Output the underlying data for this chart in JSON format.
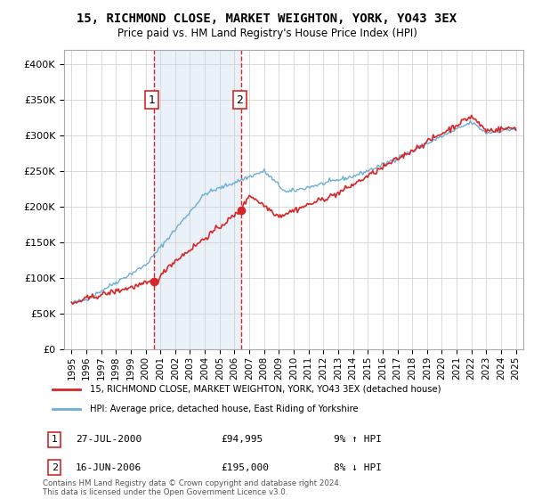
{
  "title": "15, RICHMOND CLOSE, MARKET WEIGHTON, YORK, YO43 3EX",
  "subtitle": "Price paid vs. HM Land Registry's House Price Index (HPI)",
  "legend_line1": "15, RICHMOND CLOSE, MARKET WEIGHTON, YORK, YO43 3EX (detached house)",
  "legend_line2": "HPI: Average price, detached house, East Riding of Yorkshire",
  "annotation1_label": "1",
  "annotation1_date": "27-JUL-2000",
  "annotation1_price": "£94,995",
  "annotation1_hpi": "9% ↑ HPI",
  "annotation2_label": "2",
  "annotation2_date": "16-JUN-2006",
  "annotation2_price": "£195,000",
  "annotation2_hpi": "8% ↓ HPI",
  "footnote": "Contains HM Land Registry data © Crown copyright and database right 2024.\nThis data is licensed under the Open Government Licence v3.0.",
  "hpi_color": "#6baed6",
  "price_color": "#d62728",
  "marker_color": "#d62728",
  "vline_color": "#d62728",
  "shade_color": "#dce9f5",
  "annot_box_color": "#d62728",
  "ylim_min": 0,
  "ylim_max": 420000,
  "yticks": [
    0,
    50000,
    100000,
    150000,
    200000,
    250000,
    300000,
    350000,
    400000
  ],
  "purchase1_year": 2000.57,
  "purchase1_value": 94995,
  "purchase2_year": 2006.46,
  "purchase2_value": 195000
}
